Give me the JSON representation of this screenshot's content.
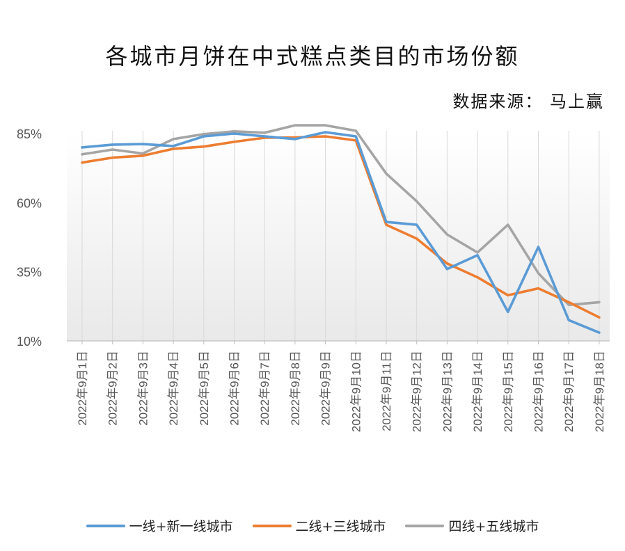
{
  "chart_data": {
    "type": "line",
    "title": "各城市月饼在中式糕点类目的市场份额",
    "subtitle": "数据来源： 马上赢",
    "y_ticks": [
      "85%",
      "60%",
      "35%",
      "10%"
    ],
    "ylim": [
      10,
      85
    ],
    "categories": [
      "2022年9月1日",
      "2022年9月2日",
      "2022年9月3日",
      "2022年9月4日",
      "2022年9月5日",
      "2022年9月6日",
      "2022年9月7日",
      "2022年9月8日",
      "2022年9月9日",
      "2022年9月10日",
      "2022年9月11日",
      "2022年9月12日",
      "2022年9月13日",
      "2022年9月14日",
      "2022年9月15日",
      "2022年9月16日",
      "2022年9月17日",
      "2022年9月18日"
    ],
    "series": [
      {
        "name": "一线+新一线城市",
        "color": "#5b9bd5",
        "values": [
          80,
          81,
          81.2,
          80.5,
          84,
          85,
          84,
          83,
          85.5,
          84,
          53,
          52,
          36,
          41,
          20.5,
          44,
          17.5,
          13
        ]
      },
      {
        "name": "二线+三线城市",
        "color": "#ed7d31",
        "values": [
          74.5,
          76.3,
          77,
          79.5,
          80.3,
          82,
          83.5,
          83.6,
          84,
          82.5,
          52,
          47,
          38,
          33,
          26.5,
          29,
          24,
          18.5
        ]
      },
      {
        "name": "四线+五线城市",
        "color": "#a5a5a5",
        "values": [
          77.5,
          79.2,
          77.8,
          83,
          84.8,
          85.8,
          85.3,
          88,
          88,
          86,
          70.5,
          60.5,
          48.5,
          42,
          52,
          34.5,
          23,
          24
        ]
      }
    ],
    "grid": "vertical",
    "legend": "bottom"
  }
}
